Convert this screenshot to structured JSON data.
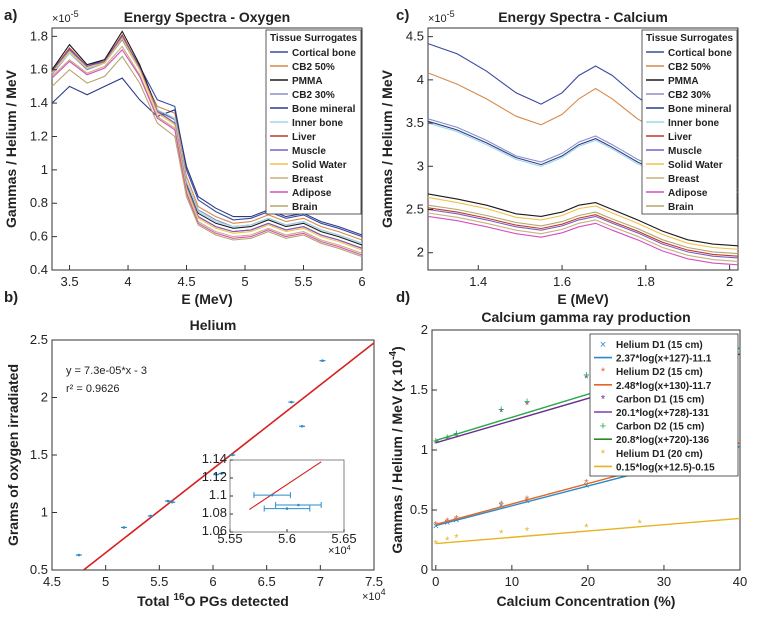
{
  "chart_data": [
    {
      "id": "a",
      "panel_label": "a)",
      "type": "line",
      "title": "Energy Spectra - Oxygen",
      "xlabel": "E (MeV)",
      "ylabel": "Gammas / Helium / MeV",
      "y_exponent": "×10",
      "y_exponent_power": "-5",
      "xlim": [
        3.35,
        6.0
      ],
      "ylim": [
        0.4,
        1.85
      ],
      "xticks": [
        3.5,
        4,
        4.5,
        5,
        5.5,
        6
      ],
      "xtick_labels": [
        "3.5",
        "4",
        "4.5",
        "5",
        "5.5",
        "6"
      ],
      "yticks": [
        0.4,
        0.6,
        0.8,
        1,
        1.2,
        1.4,
        1.6,
        1.8
      ],
      "ytick_labels": [
        "0.4",
        "0.6",
        "0.8",
        "1",
        "1.2",
        "1.4",
        "1.6",
        "1.8"
      ],
      "legend_title": "Tissue Surrogates",
      "legend_position": "top-right",
      "x": [
        3.35,
        3.5,
        3.65,
        3.8,
        3.95,
        4.1,
        4.25,
        4.4,
        4.5,
        4.6,
        4.75,
        4.9,
        5.05,
        5.2,
        5.35,
        5.5,
        5.65,
        5.8,
        6.0
      ],
      "series": [
        {
          "name": "Cortical bone",
          "color": "#3b4a9e",
          "values": [
            1.6,
            1.72,
            1.62,
            1.66,
            1.8,
            1.62,
            1.42,
            1.38,
            1.0,
            0.82,
            0.75,
            0.7,
            0.71,
            0.75,
            0.71,
            0.73,
            0.68,
            0.65,
            0.6
          ]
        },
        {
          "name": "CB2 50%",
          "color": "#d98a4a",
          "values": [
            1.58,
            1.7,
            1.6,
            1.65,
            1.78,
            1.6,
            1.38,
            1.34,
            0.96,
            0.78,
            0.72,
            0.68,
            0.69,
            0.73,
            0.69,
            0.71,
            0.66,
            0.63,
            0.58
          ]
        },
        {
          "name": "PMMA",
          "color": "#1a1a1a",
          "values": [
            1.6,
            1.75,
            1.63,
            1.66,
            1.83,
            1.63,
            1.36,
            1.3,
            0.92,
            0.74,
            0.68,
            0.65,
            0.66,
            0.7,
            0.66,
            0.68,
            0.63,
            0.6,
            0.55
          ]
        },
        {
          "name": "CB2 30%",
          "color": "#8a8fc9",
          "values": [
            1.57,
            1.7,
            1.6,
            1.64,
            1.78,
            1.6,
            1.35,
            1.3,
            0.93,
            0.76,
            0.7,
            0.66,
            0.67,
            0.71,
            0.67,
            0.69,
            0.64,
            0.61,
            0.56
          ]
        },
        {
          "name": "Bone mineral",
          "color": "#2a3a8a",
          "values": [
            1.4,
            1.5,
            1.45,
            1.5,
            1.55,
            1.42,
            1.32,
            1.36,
            1.02,
            0.84,
            0.77,
            0.72,
            0.72,
            0.76,
            0.72,
            0.74,
            0.69,
            0.66,
            0.61
          ]
        },
        {
          "name": "Inner bone",
          "color": "#9fd7e8",
          "values": [
            1.58,
            1.7,
            1.61,
            1.64,
            1.79,
            1.6,
            1.36,
            1.31,
            0.93,
            0.75,
            0.69,
            0.66,
            0.67,
            0.71,
            0.67,
            0.69,
            0.64,
            0.61,
            0.56
          ]
        },
        {
          "name": "Liver",
          "color": "#c0392b",
          "values": [
            1.59,
            1.73,
            1.62,
            1.65,
            1.81,
            1.61,
            1.35,
            1.28,
            0.9,
            0.72,
            0.66,
            0.63,
            0.64,
            0.68,
            0.64,
            0.66,
            0.61,
            0.58,
            0.53
          ]
        },
        {
          "name": "Muscle",
          "color": "#7b5fc7",
          "values": [
            1.59,
            1.72,
            1.62,
            1.65,
            1.8,
            1.61,
            1.35,
            1.28,
            0.9,
            0.72,
            0.66,
            0.63,
            0.64,
            0.68,
            0.64,
            0.66,
            0.61,
            0.58,
            0.53
          ]
        },
        {
          "name": "Solid Water",
          "color": "#f2c14e",
          "values": [
            1.58,
            1.71,
            1.61,
            1.64,
            1.79,
            1.6,
            1.34,
            1.27,
            0.89,
            0.71,
            0.65,
            0.62,
            0.63,
            0.67,
            0.63,
            0.65,
            0.6,
            0.57,
            0.52
          ]
        },
        {
          "name": "Breast",
          "color": "#c8b27a",
          "values": [
            1.56,
            1.66,
            1.58,
            1.62,
            1.74,
            1.57,
            1.32,
            1.25,
            0.87,
            0.69,
            0.63,
            0.6,
            0.61,
            0.65,
            0.61,
            0.63,
            0.58,
            0.55,
            0.5
          ]
        },
        {
          "name": "Adipose",
          "color": "#d64fc2",
          "values": [
            1.55,
            1.65,
            1.57,
            1.61,
            1.72,
            1.56,
            1.31,
            1.24,
            0.86,
            0.68,
            0.62,
            0.59,
            0.6,
            0.64,
            0.6,
            0.62,
            0.57,
            0.54,
            0.49
          ]
        },
        {
          "name": "Brain",
          "color": "#b5a76a",
          "values": [
            1.5,
            1.6,
            1.52,
            1.56,
            1.68,
            1.52,
            1.28,
            1.2,
            0.84,
            0.67,
            0.61,
            0.58,
            0.59,
            0.63,
            0.59,
            0.61,
            0.56,
            0.53,
            0.48
          ]
        }
      ]
    },
    {
      "id": "c",
      "panel_label": "c)",
      "type": "line",
      "title": "Energy Spectra - Calcium",
      "xlabel": "E (MeV)",
      "ylabel": "Gammas / Helium / MeV",
      "y_exponent": "×10",
      "y_exponent_power": "-5",
      "xlim": [
        1.28,
        2.02
      ],
      "ylim": [
        1.8,
        4.6
      ],
      "xticks": [
        1.4,
        1.6,
        1.8,
        2
      ],
      "xtick_labels": [
        "1.4",
        "1.6",
        "1.8",
        "2"
      ],
      "yticks": [
        2,
        2.5,
        3,
        3.5,
        4,
        4.5
      ],
      "ytick_labels": [
        "2",
        "2.5",
        "3",
        "3.5",
        "4",
        "4.5"
      ],
      "legend_title": "Tissue Surrogates",
      "legend_position": "top-right",
      "x": [
        1.28,
        1.35,
        1.42,
        1.49,
        1.55,
        1.6,
        1.64,
        1.68,
        1.72,
        1.78,
        1.84,
        1.9,
        1.96,
        2.02
      ],
      "series": [
        {
          "name": "Cortical bone",
          "color": "#3b4a9e",
          "values": [
            4.42,
            4.3,
            4.1,
            3.85,
            3.72,
            3.85,
            4.05,
            4.16,
            4.05,
            3.8,
            3.6,
            3.5,
            3.4,
            3.3
          ]
        },
        {
          "name": "CB2 50%",
          "color": "#d98a4a",
          "values": [
            4.08,
            3.95,
            3.78,
            3.58,
            3.48,
            3.6,
            3.78,
            3.9,
            3.78,
            3.55,
            3.38,
            3.28,
            3.18,
            3.1
          ]
        },
        {
          "name": "PMMA",
          "color": "#1a1a1a",
          "values": [
            2.68,
            2.62,
            2.55,
            2.45,
            2.42,
            2.47,
            2.55,
            2.58,
            2.5,
            2.38,
            2.25,
            2.15,
            2.1,
            2.08
          ]
        },
        {
          "name": "CB2 30%",
          "color": "#8a8fc9",
          "values": [
            3.55,
            3.45,
            3.3,
            3.12,
            3.05,
            3.15,
            3.28,
            3.35,
            3.25,
            3.08,
            2.95,
            2.88,
            2.8,
            2.74
          ]
        },
        {
          "name": "Bone mineral",
          "color": "#2a3a8a",
          "values": [
            3.52,
            3.42,
            3.27,
            3.1,
            3.02,
            3.12,
            3.25,
            3.32,
            3.22,
            3.05,
            2.92,
            2.85,
            2.78,
            2.72
          ]
        },
        {
          "name": "Inner bone",
          "color": "#9fd7e8",
          "values": [
            3.5,
            3.4,
            3.25,
            3.08,
            3.0,
            3.1,
            3.23,
            3.3,
            3.2,
            3.03,
            2.9,
            2.83,
            2.76,
            2.7
          ]
        },
        {
          "name": "Liver",
          "color": "#c0392b",
          "values": [
            2.52,
            2.47,
            2.4,
            2.32,
            2.28,
            2.33,
            2.4,
            2.44,
            2.36,
            2.25,
            2.12,
            2.03,
            1.98,
            1.96
          ]
        },
        {
          "name": "Muscle",
          "color": "#7b5fc7",
          "values": [
            2.5,
            2.45,
            2.38,
            2.3,
            2.26,
            2.31,
            2.38,
            2.42,
            2.34,
            2.23,
            2.1,
            2.01,
            1.96,
            1.94
          ]
        },
        {
          "name": "Solid Water",
          "color": "#f2c14e",
          "values": [
            2.64,
            2.58,
            2.51,
            2.41,
            2.38,
            2.43,
            2.51,
            2.54,
            2.46,
            2.34,
            2.21,
            2.11,
            2.06,
            2.04
          ]
        },
        {
          "name": "Breast",
          "color": "#c8b27a",
          "values": [
            2.46,
            2.41,
            2.34,
            2.26,
            2.22,
            2.27,
            2.34,
            2.38,
            2.3,
            2.19,
            2.06,
            1.97,
            1.92,
            1.9
          ]
        },
        {
          "name": "Adipose",
          "color": "#d64fc2",
          "values": [
            2.42,
            2.37,
            2.3,
            2.22,
            2.18,
            2.23,
            2.3,
            2.34,
            2.26,
            2.15,
            2.02,
            1.93,
            1.88,
            1.86
          ]
        },
        {
          "name": "Brain",
          "color": "#b5a76a",
          "values": [
            2.55,
            2.5,
            2.43,
            2.35,
            2.31,
            2.36,
            2.43,
            2.47,
            2.39,
            2.28,
            2.15,
            2.06,
            2.01,
            1.99
          ]
        }
      ]
    },
    {
      "id": "b",
      "panel_label": "b)",
      "type": "scatter",
      "title": "Helium",
      "xlabel_pre": "Total ",
      "xlabel_sup": "16",
      "xlabel_post": "O PGs detected",
      "x_exponent": "×10",
      "x_exponent_power": "4",
      "ylabel": "Grams of oxygen irradiated",
      "xlim": [
        4.5,
        7.5
      ],
      "ylim": [
        0.5,
        2.5
      ],
      "xticks": [
        4.5,
        5,
        5.5,
        6,
        6.5,
        7,
        7.5
      ],
      "xtick_labels": [
        "4.5",
        "5",
        "5.5",
        "6",
        "6.5",
        "7",
        "7.5"
      ],
      "yticks": [
        0.5,
        1,
        1.5,
        2,
        2.5
      ],
      "ytick_labels": [
        "0.5",
        "1",
        "1.5",
        "2",
        "2.5"
      ],
      "fit_equation": "y = 7.3e-05*x - 3",
      "fit_r2": "r² = 0.9626",
      "fit_color": "#d62020",
      "point_color": "#2a8bc9",
      "fit_line": {
        "x": [
          4.5,
          7.5
        ],
        "y": [
          0.285,
          2.475
        ]
      },
      "points": [
        {
          "x": 4.75,
          "y": 0.63
        },
        {
          "x": 5.17,
          "y": 0.87
        },
        {
          "x": 5.42,
          "y": 0.97
        },
        {
          "x": 5.58,
          "y": 1.1
        },
        {
          "x": 5.62,
          "y": 1.09
        },
        {
          "x": 6.03,
          "y": 1.33
        },
        {
          "x": 6.08,
          "y": 1.34
        },
        {
          "x": 6.18,
          "y": 1.5
        },
        {
          "x": 6.73,
          "y": 1.96
        },
        {
          "x": 6.83,
          "y": 1.75
        },
        {
          "x": 7.02,
          "y": 2.32
        }
      ],
      "inset": {
        "xlim": [
          5.55,
          5.65
        ],
        "ylim": [
          1.06,
          1.14
        ],
        "xticks": [
          5.55,
          5.6,
          5.65
        ],
        "xtick_labels": [
          "5.55",
          "5.6",
          "5.65"
        ],
        "yticks": [
          1.06,
          1.08,
          1.1,
          1.12,
          1.14
        ],
        "ytick_labels": [
          "1.06",
          "1.08",
          "1.1",
          "1.12",
          "1.14"
        ],
        "x_exponent": "×10",
        "x_exponent_power": "4",
        "points": [
          {
            "x": 5.587,
            "y": 1.101,
            "xerr": 0.016
          },
          {
            "x": 5.61,
            "y": 1.09,
            "xerr": 0.02
          },
          {
            "x": 5.6,
            "y": 1.086,
            "xerr": 0.02
          }
        ],
        "fit_line": {
          "x": [
            5.567,
            5.63
          ],
          "y": [
            1.085,
            1.138
          ]
        }
      }
    },
    {
      "id": "d",
      "panel_label": "d)",
      "type": "line",
      "title": "Calcium gamma ray production",
      "xlabel": "Calcium Concentration (%)",
      "ylabel": "Gammas / Helium / MeV (x 10",
      "ylabel_sup": "-4",
      "ylabel_end": ")",
      "xlim": [
        -0.5,
        40
      ],
      "ylim": [
        0,
        2
      ],
      "xticks": [
        0,
        10,
        20,
        30,
        40
      ],
      "xtick_labels": [
        "0",
        "10",
        "20",
        "30",
        "40"
      ],
      "yticks": [
        0,
        0.5,
        1,
        1.5,
        2
      ],
      "ytick_labels": [
        "0",
        "0.5",
        "1",
        "1.5",
        "2"
      ],
      "legend_position": "right",
      "point_x": [
        0,
        1.5,
        2.7,
        8.6,
        12,
        19.8,
        26.8
      ],
      "legend": [
        {
          "label": "Helium D1 (15 cm)",
          "kind": "marker",
          "marker": "×",
          "color": "#2a8bc9"
        },
        {
          "label": "2.37*log(x+127)-11.1",
          "kind": "line",
          "color": "#2a8bc9"
        },
        {
          "label": "Helium D2 (15 cm)",
          "kind": "marker",
          "marker": "*",
          "color": "#e0662a"
        },
        {
          "label": "2.48*log(x+130)-11.7",
          "kind": "line",
          "color": "#e0662a"
        },
        {
          "label": "Carbon D1 (15 cm)",
          "kind": "marker",
          "marker": "*",
          "color": "#6a2b8f"
        },
        {
          "label": "20.1*log(x+728)-131",
          "kind": "line",
          "color": "#7b3fb0"
        },
        {
          "label": "Carbon D2 (15 cm)",
          "kind": "marker",
          "marker": "+",
          "color": "#2aa84a"
        },
        {
          "label": "20.8*log(x+720)-136",
          "kind": "line",
          "color": "#2a8a2a"
        },
        {
          "label": "Helium D1 (20 cm)",
          "kind": "marker",
          "marker": "*",
          "color": "#e6b422"
        },
        {
          "label": "0.15*log(x+12.5)-0.15",
          "kind": "line",
          "color": "#e6b422"
        }
      ],
      "series": [
        {
          "color": "#2a8bc9",
          "marker": "×",
          "points": [
            0.37,
            0.4,
            0.42,
            0.54,
            0.58,
            0.71,
            0.83
          ],
          "fit": [
            0.37,
            1.03
          ]
        },
        {
          "color": "#e0662a",
          "marker": "*",
          "points": [
            0.38,
            0.41,
            0.43,
            0.55,
            0.59,
            0.73,
            0.85
          ],
          "fit": [
            0.38,
            1.06
          ]
        },
        {
          "color": "#6a2b8f",
          "marker": "*",
          "points": [
            1.06,
            1.09,
            1.12,
            1.32,
            1.38,
            1.6,
            1.8
          ],
          "fit": [
            1.06,
            1.8
          ]
        },
        {
          "color": "#2aa84a",
          "marker": "+",
          "points": [
            1.08,
            1.11,
            1.14,
            1.34,
            1.41,
            1.63,
            1.85
          ],
          "fit": [
            1.08,
            1.85
          ]
        },
        {
          "color": "#e6b422",
          "marker": "*",
          "points": [
            0.22,
            0.25,
            0.27,
            0.31,
            0.33,
            0.36,
            0.39
          ],
          "fit": [
            0.22,
            0.43
          ]
        }
      ]
    }
  ]
}
